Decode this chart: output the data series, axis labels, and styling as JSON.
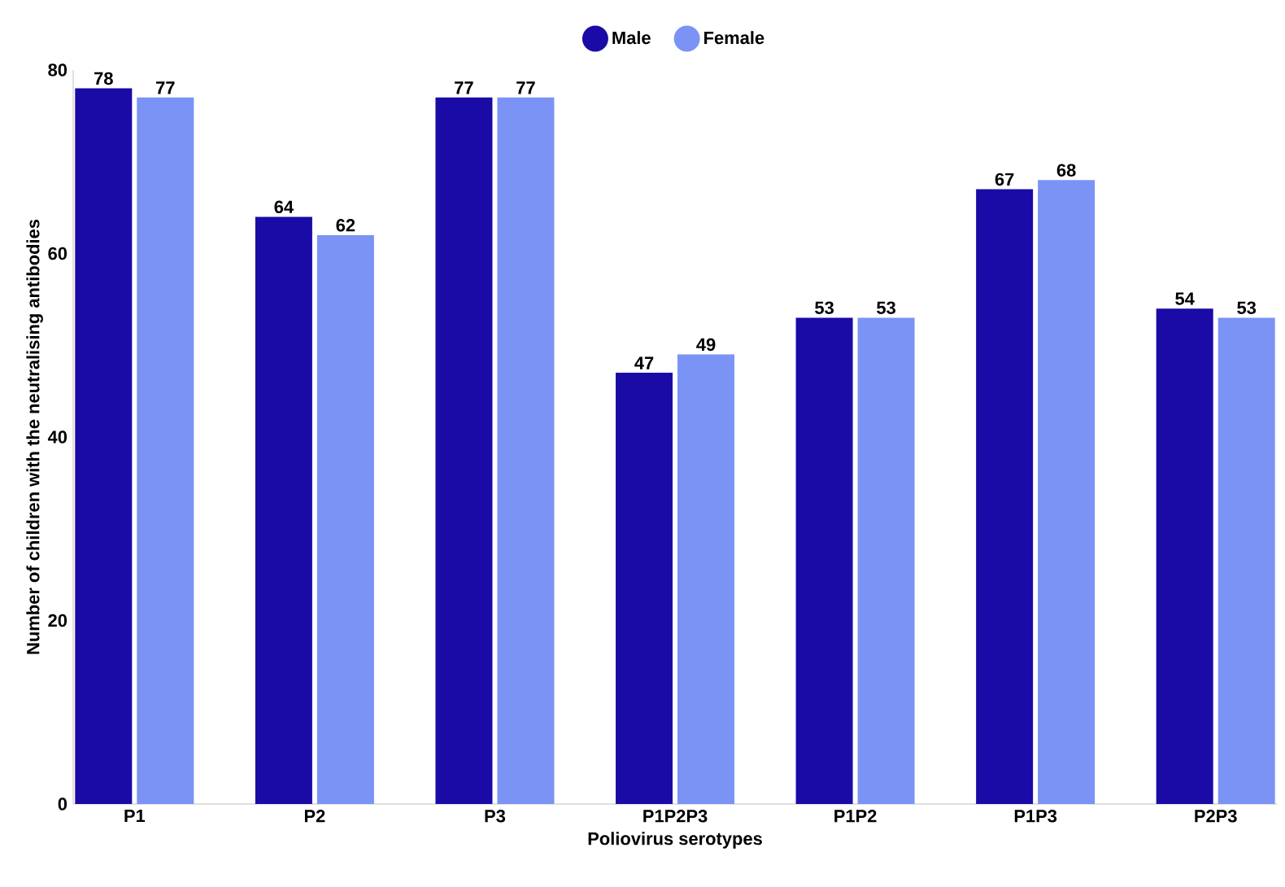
{
  "chart_data": {
    "type": "bar",
    "xlabel": "Poliovirus serotypes",
    "ylabel": "Number of children with the neutralising antibodies",
    "categories": [
      "P1",
      "P2",
      "P3",
      "P1P2P3",
      "P1P2",
      "P1P3",
      "P2P3"
    ],
    "series": [
      {
        "name": "Male",
        "color": "#1a0aa6",
        "values": [
          78,
          64,
          77,
          47,
          53,
          67,
          54
        ]
      },
      {
        "name": "Female",
        "color": "#7b93f5",
        "values": [
          77,
          62,
          77,
          49,
          53,
          68,
          53
        ]
      }
    ],
    "ylim": [
      0,
      80
    ],
    "yticks": [
      0,
      20,
      40,
      60,
      80
    ],
    "data_labels": true,
    "legend": "top",
    "grid": false
  }
}
